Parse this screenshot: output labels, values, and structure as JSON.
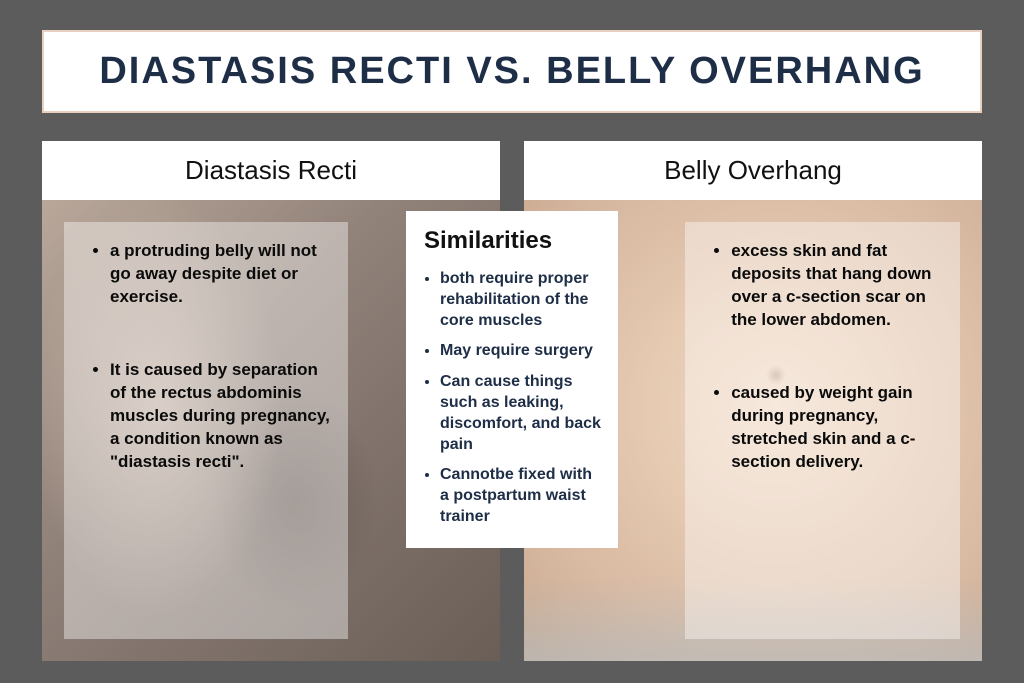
{
  "title": "DIASTASIS RECTI VS. BELLY OVERHANG",
  "left": {
    "header": "Diastasis Recti",
    "bullets": [
      "a protruding belly will not go away despite diet or exercise.",
      "It is caused by separation of the rectus abdominis muscles during pregnancy, a condition known as \"diastasis recti\"."
    ]
  },
  "right": {
    "header": "Belly Overhang",
    "bullets": [
      "excess skin and fat deposits that hang down over a c-section scar on the lower abdomen.",
      "caused by weight gain during pregnancy, stretched skin and a c-section delivery."
    ]
  },
  "similarities": {
    "header": "Similarities",
    "bullets": [
      "both require proper rehabilitation of the core muscles",
      "May require surgery",
      "Can cause things such as leaking, discomfort, and back pain",
      "Cannotbe fixed with a postpartum waist trainer"
    ]
  },
  "colors": {
    "page_bg": "#5c5c5c",
    "title_text": "#1e2e47",
    "title_border": "#e8cfc0",
    "panel_header_bg": "#ffffff",
    "overlay_bg": "rgba(255,255,255,0.40)",
    "bullet_text": "#0a0a0a",
    "similarities_text": "#1e2e47"
  }
}
